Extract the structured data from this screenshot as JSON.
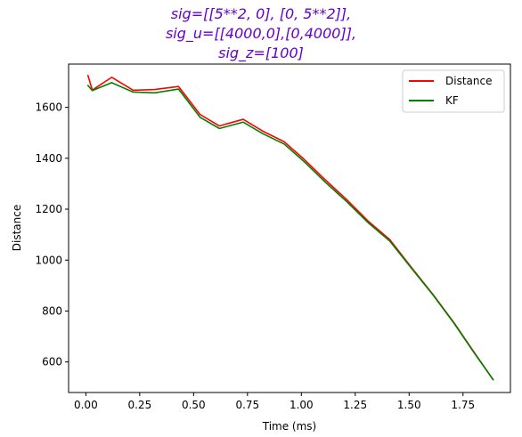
{
  "chart_data": {
    "type": "line",
    "title_lines": [
      "sig=[[5**2, 0], [0, 5**2]],",
      "sig_u=[[4000,0],[0,4000]],",
      "sig_z=[100]"
    ],
    "title_color": "#6600cc",
    "xlabel": "Time (ms)",
    "ylabel": "Distance",
    "xlim": [
      -0.08,
      1.97
    ],
    "ylim": [
      480,
      1770
    ],
    "xticks": [
      0.0,
      0.25,
      0.5,
      0.75,
      1.0,
      1.25,
      1.5,
      1.75
    ],
    "xtick_labels": [
      "0.00",
      "0.25",
      "0.50",
      "0.75",
      "1.00",
      "1.25",
      "1.50",
      "1.75"
    ],
    "yticks": [
      600,
      800,
      1000,
      1200,
      1400,
      1600
    ],
    "ytick_labels": [
      "600",
      "800",
      "1000",
      "1200",
      "1400",
      "1600"
    ],
    "grid": false,
    "legend_position": "top-right",
    "series": [
      {
        "name": "Distance",
        "color": "#ff0000",
        "x": [
          0.01,
          0.03,
          0.12,
          0.22,
          0.32,
          0.43,
          0.53,
          0.62,
          0.73,
          0.82,
          0.92,
          1.01,
          1.11,
          1.21,
          1.31,
          1.41,
          1.51,
          1.61,
          1.71,
          1.8,
          1.89
        ],
        "y": [
          1725,
          1668,
          1718,
          1667,
          1670,
          1682,
          1572,
          1527,
          1553,
          1507,
          1465,
          1398,
          1316,
          1238,
          1153,
          1081,
          972,
          866,
          752,
          640,
          530
        ]
      },
      {
        "name": "KF",
        "color": "#008000",
        "x": [
          0.01,
          0.03,
          0.12,
          0.22,
          0.32,
          0.43,
          0.53,
          0.62,
          0.73,
          0.82,
          0.92,
          1.01,
          1.11,
          1.21,
          1.31,
          1.41,
          1.51,
          1.61,
          1.71,
          1.8,
          1.89
        ],
        "y": [
          1686,
          1666,
          1697,
          1660,
          1657,
          1672,
          1561,
          1517,
          1542,
          1497,
          1456,
          1389,
          1307,
          1230,
          1147,
          1075,
          969,
          864,
          750,
          638,
          530
        ]
      }
    ]
  }
}
